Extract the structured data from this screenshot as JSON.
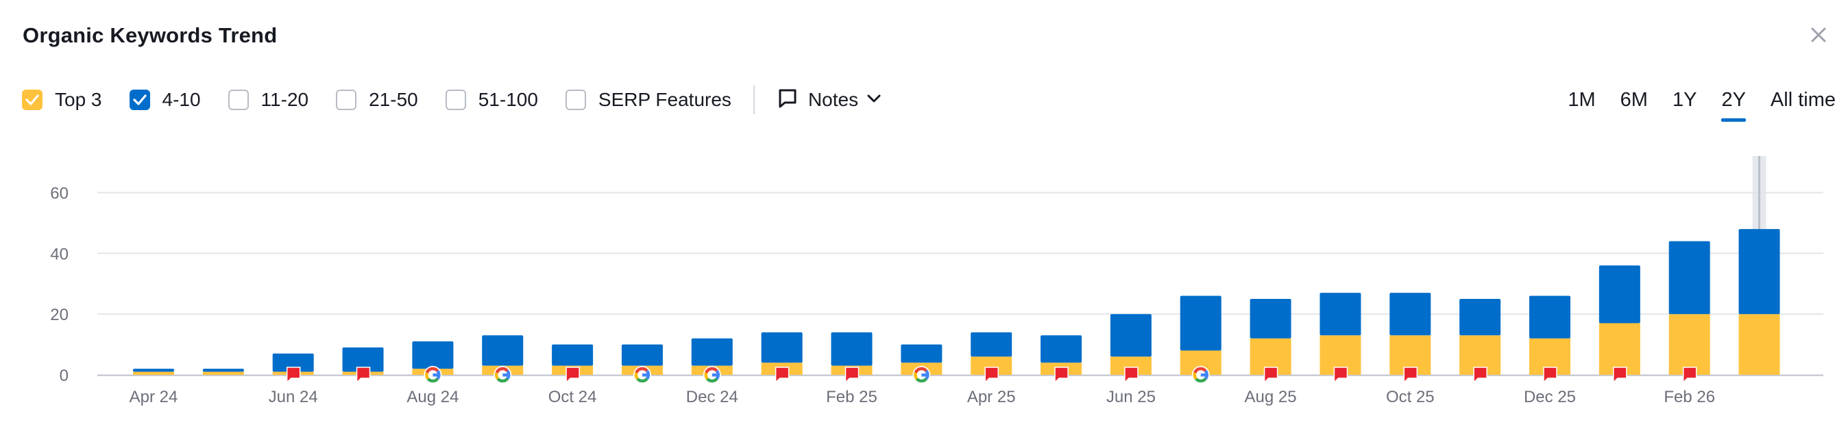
{
  "header": {
    "title": "Organic Keywords Trend",
    "close_icon": "close-icon"
  },
  "filters": [
    {
      "label": "Top 3",
      "checked": true,
      "color": "#ffc23d"
    },
    {
      "label": "4-10",
      "checked": true,
      "color": "#006dca"
    },
    {
      "label": "11-20",
      "checked": false,
      "color": ""
    },
    {
      "label": "21-50",
      "checked": false,
      "color": ""
    },
    {
      "label": "51-100",
      "checked": false,
      "color": ""
    },
    {
      "label": "SERP Features",
      "checked": false,
      "color": ""
    }
  ],
  "notes": {
    "label": "Notes",
    "icon": "comment-icon",
    "chevron": "chevron-down-icon"
  },
  "periods": [
    {
      "label": "1M",
      "active": false
    },
    {
      "label": "6M",
      "active": false
    },
    {
      "label": "1Y",
      "active": false
    },
    {
      "label": "2Y",
      "active": true
    },
    {
      "label": "All time",
      "active": false
    }
  ],
  "colors": {
    "top3": "#ffc23d",
    "pos4_10": "#006dca",
    "note_flag": "#e8232d",
    "grid": "#e3e5e9"
  },
  "chart_data": {
    "type": "bar",
    "stacked": true,
    "x": [
      "Apr 24",
      "May 24",
      "Jun 24",
      "Jul 24",
      "Aug 24",
      "Sep 24",
      "Oct 24",
      "Nov 24",
      "Dec 24",
      "Jan 25",
      "Feb 25",
      "Mar 25",
      "Apr 25",
      "May 25",
      "Jun 25",
      "Jul 25",
      "Aug 25",
      "Sep 25",
      "Oct 25",
      "Nov 25",
      "Dec 25",
      "Jan 26",
      "Feb 26",
      "Mar 26"
    ],
    "x_tick_labels": [
      "Apr 24",
      "Jun 24",
      "Aug 24",
      "Oct 24",
      "Dec 24",
      "Feb 25",
      "Apr 25",
      "Jun 25",
      "Aug 25",
      "Oct 25",
      "Dec 25",
      "Feb 26"
    ],
    "series": [
      {
        "name": "Top 3",
        "color": "#ffc23d",
        "values": [
          1,
          1,
          1,
          1,
          2,
          3,
          3,
          3,
          3,
          4,
          3,
          4,
          6,
          4,
          6,
          8,
          12,
          13,
          13,
          13,
          12,
          17,
          20,
          20
        ]
      },
      {
        "name": "4-10",
        "color": "#006dca",
        "values": [
          1,
          1,
          6,
          8,
          9,
          10,
          7,
          7,
          9,
          10,
          11,
          6,
          8,
          9,
          14,
          18,
          13,
          14,
          14,
          12,
          14,
          19,
          24,
          28
        ]
      }
    ],
    "markers": [
      "",
      "",
      "note",
      "note",
      "google",
      "google",
      "note",
      "google",
      "google",
      "note",
      "note",
      "google",
      "note",
      "note",
      "note",
      "google",
      "note",
      "note",
      "note",
      "note",
      "note",
      "note",
      "note",
      ""
    ],
    "y_ticks": [
      0,
      20,
      40,
      60
    ],
    "ylim": [
      0,
      72
    ],
    "highlight_last": true,
    "grid": true
  }
}
